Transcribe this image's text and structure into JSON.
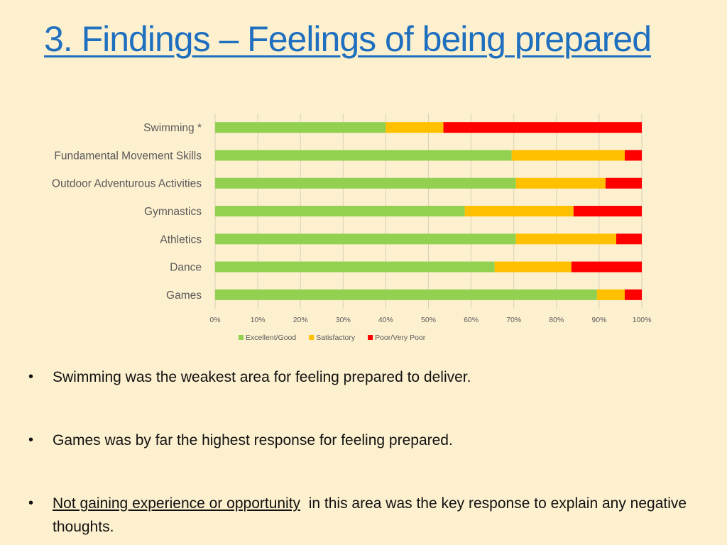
{
  "title": "3. Findings – Feelings of being prepared",
  "colors": {
    "excellent": "#92d050",
    "satisfactory": "#ffc000",
    "poor": "#ff0000",
    "grid": "#d9d0b8",
    "axis_text": "#595959"
  },
  "chart_data": {
    "type": "bar",
    "orientation": "horizontal",
    "stacked": true,
    "percent": true,
    "categories": [
      "Swimming *",
      "Fundamental Movement Skills",
      "Outdoor Adventurous Activities",
      "Gymnastics",
      "Athletics",
      "Dance",
      "Games"
    ],
    "series": [
      {
        "name": "Excellent/Good",
        "color": "#92d050",
        "values": [
          40,
          69.5,
          70.5,
          58.5,
          70.5,
          65.5,
          89.5
        ]
      },
      {
        "name": "Satisfactory",
        "color": "#ffc000",
        "values": [
          13.5,
          26.5,
          21,
          25.5,
          23.5,
          18,
          6.5
        ]
      },
      {
        "name": "Poor/Very Poor",
        "color": "#ff0000",
        "values": [
          46.5,
          4,
          8.5,
          16,
          6,
          16.5,
          4
        ]
      }
    ],
    "xticks": [
      "0%",
      "10%",
      "20%",
      "30%",
      "40%",
      "50%",
      "60%",
      "70%",
      "80%",
      "90%",
      "100%"
    ],
    "xlim": [
      0,
      100
    ],
    "grid": true,
    "legend": "bottom"
  },
  "bullets": [
    {
      "text": "Swimming was the weakest area for feeling prepared to deliver."
    },
    {
      "text": "Games was by far the highest response for feeling prepared."
    },
    {
      "underlined": "Not gaining experience or opportunity",
      "text": "  in this area was the key response to explain any negative thoughts."
    }
  ],
  "bullet_char": "•"
}
